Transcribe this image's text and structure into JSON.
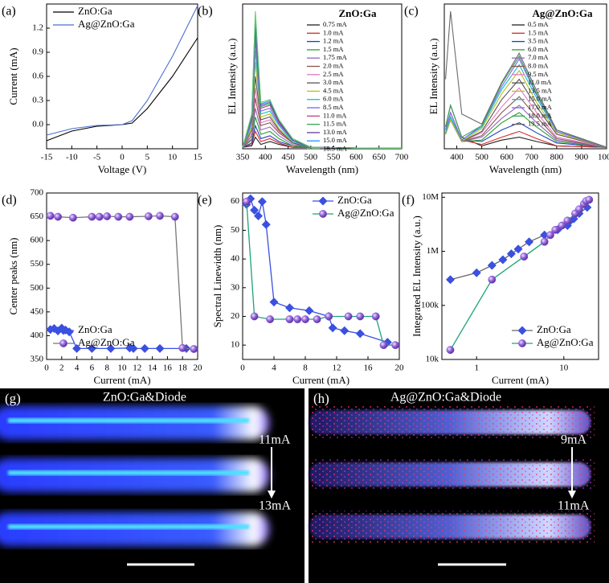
{
  "chart_data": [
    {
      "type": "line",
      "label": "(a)",
      "xlabel": "Voltage (V)",
      "ylabel": "Current (mA)",
      "x": [
        -15,
        -10,
        -5,
        0,
        2,
        5,
        10,
        15
      ],
      "series": [
        {
          "name": "ZnO:Ga",
          "color": "#000000",
          "values": [
            -0.2,
            -0.08,
            -0.02,
            0,
            0.02,
            0.2,
            0.6,
            1.08
          ]
        },
        {
          "name": "Ag@ZnO:Ga",
          "color": "#4a6fd0",
          "values": [
            -0.13,
            -0.05,
            -0.01,
            0,
            0.05,
            0.3,
            0.85,
            1.48
          ]
        }
      ],
      "xlim": [
        -15,
        15
      ],
      "xticks": [
        -15,
        -10,
        -5,
        0,
        5,
        10,
        15
      ],
      "ylim": [
        -0.3,
        1.5
      ],
      "yticks": [
        {
          "value": 0,
          "label": "0.0"
        },
        0.3,
        0.6,
        0.9,
        1.2
      ],
      "legend": "upper left"
    },
    {
      "type": "line",
      "label": "(b)",
      "title": "ZnO:Ga",
      "xlabel": "Wavelength (nm)",
      "ylabel": "EL Intensity (a.u.)",
      "x": [
        350,
        370,
        378,
        390,
        410,
        430,
        460,
        500,
        600,
        700
      ],
      "series": [
        {
          "name": "0.75 mA",
          "color": "#222222",
          "values": [
            1,
            2,
            8,
            3,
            5,
            3,
            1,
            1,
            0.5,
            0.3
          ]
        },
        {
          "name": "1.0 mA",
          "color": "#d62728",
          "values": [
            1,
            3,
            12,
            5,
            7,
            4,
            1,
            1,
            0.5,
            0.3
          ]
        },
        {
          "name": "1.2 mA",
          "color": "#1f3fbf",
          "values": [
            1,
            4,
            16,
            7,
            9,
            5,
            2,
            1,
            0.5,
            0.3
          ]
        },
        {
          "name": "1.5 mA",
          "color": "#2ca02c",
          "values": [
            1,
            6,
            22,
            10,
            12,
            7,
            2,
            1,
            0.5,
            0.3
          ]
        },
        {
          "name": "1.75 mA",
          "color": "#9467bd",
          "values": [
            1,
            7,
            28,
            13,
            15,
            9,
            3,
            1,
            0.5,
            0.3
          ]
        },
        {
          "name": "2.0 mA",
          "color": "#8c564b",
          "values": [
            1,
            9,
            35,
            16,
            18,
            11,
            4,
            1,
            0.5,
            0.3
          ]
        },
        {
          "name": "2.5 mA",
          "color": "#e377c2",
          "values": [
            1,
            11,
            42,
            18,
            20,
            12,
            4,
            1,
            0.5,
            0.3
          ]
        },
        {
          "name": "3.0 mA",
          "color": "#555555",
          "values": [
            1,
            13,
            50,
            20,
            22,
            13,
            4,
            1,
            0.5,
            0.3
          ]
        },
        {
          "name": "4.5 mA",
          "color": "#bcbd22",
          "values": [
            1,
            15,
            60,
            22,
            24,
            14,
            5,
            1,
            0.5,
            0.3
          ]
        },
        {
          "name": "6.0 mA",
          "color": "#17becf",
          "values": [
            1,
            17,
            68,
            24,
            26,
            16,
            5,
            1,
            0.5,
            0.3
          ]
        },
        {
          "name": "8.5 mA",
          "color": "#7b68ee",
          "values": [
            1,
            19,
            75,
            26,
            28,
            17,
            6,
            1,
            0.5,
            0.3
          ]
        },
        {
          "name": "11.0 mA",
          "color": "#c04080",
          "values": [
            1,
            20,
            80,
            28,
            30,
            18,
            6,
            1,
            0.5,
            0.3
          ]
        },
        {
          "name": "11.5 mA",
          "color": "#3aa655",
          "values": [
            1,
            21,
            84,
            29,
            31,
            19,
            6,
            1,
            0.5,
            0.3
          ]
        },
        {
          "name": "13.0 mA",
          "color": "#6a3d9a",
          "values": [
            1,
            22,
            88,
            30,
            32,
            19,
            6,
            1,
            0.5,
            0.3
          ]
        },
        {
          "name": "15.0 mA",
          "color": "#1e90ff",
          "values": [
            1,
            23,
            92,
            31,
            33,
            20,
            7,
            1,
            0.5,
            0.3
          ]
        },
        {
          "name": "18.5 mA",
          "color": "#66cc66",
          "values": [
            1,
            24,
            95,
            32,
            34,
            20,
            7,
            1,
            0.5,
            0.3
          ]
        }
      ],
      "xlim": [
        350,
        700
      ],
      "xticks": [
        350,
        400,
        450,
        500,
        550,
        600,
        650,
        700
      ],
      "ylim": [
        0,
        100
      ],
      "legend": "upper right"
    },
    {
      "type": "line",
      "label": "(c)",
      "title": "Ag@ZnO:Ga",
      "xlabel": "Wavelength (nm)",
      "ylabel": "EL Intensity (a.u.)",
      "x": [
        355,
        375,
        420,
        500,
        580,
        650,
        720,
        800,
        1000
      ],
      "series": [
        {
          "name": "0.5 mA",
          "color": "#222222",
          "values": [
            15,
            30,
            8,
            2,
            6,
            8,
            5,
            2,
            1
          ]
        },
        {
          "name": "1.5 mA",
          "color": "#d62728",
          "values": [
            13,
            25,
            6,
            3,
            8,
            12,
            7,
            2,
            1
          ]
        },
        {
          "name": "3.5 mA",
          "color": "#1f3fbf",
          "values": [
            11,
            22,
            6,
            5,
            13,
            18,
            11,
            4,
            1
          ]
        },
        {
          "name": "6.0 mA",
          "color": "#2ca02c",
          "values": [
            10,
            20,
            5,
            6,
            18,
            25,
            15,
            5,
            1
          ]
        },
        {
          "name": "7.0 mA",
          "color": "#9467bd",
          "values": [
            10,
            20,
            5,
            8,
            21,
            30,
            18,
            6,
            1
          ]
        },
        {
          "name": "8.0 mA",
          "color": "#8c564b",
          "values": [
            10,
            20,
            5,
            9,
            25,
            36,
            22,
            7,
            1
          ]
        },
        {
          "name": "9.5 mA",
          "color": "#e377c2",
          "values": [
            10,
            20,
            5,
            11,
            29,
            42,
            25,
            8,
            1
          ]
        },
        {
          "name": "11.0 mA",
          "color": "#555555",
          "values": [
            10,
            20,
            5,
            12,
            34,
            48,
            29,
            10,
            1
          ]
        },
        {
          "name": "13.5 mA",
          "color": "#bcbd22",
          "values": [
            10,
            20,
            5,
            14,
            38,
            54,
            32,
            11,
            1
          ]
        },
        {
          "name": "15.0 mA",
          "color": "#17becf",
          "values": [
            11,
            22,
            6,
            15,
            41,
            58,
            35,
            12,
            1
          ]
        },
        {
          "name": "17.0 mA",
          "color": "#7b68ee",
          "values": [
            13,
            25,
            6,
            16,
            43,
            62,
            37,
            12,
            1
          ]
        },
        {
          "name": "18.0 mA",
          "color": "#3aa655",
          "values": [
            15,
            30,
            8,
            16,
            45,
            64,
            38,
            13,
            1
          ]
        },
        {
          "name": "19.5 mA",
          "color": "#6a6a6a",
          "values": [
            48,
            95,
            24,
            17,
            46,
            66,
            40,
            13,
            1
          ]
        }
      ],
      "xlim": [
        350,
        1000
      ],
      "xticks": [
        400,
        500,
        600,
        700,
        800,
        900,
        1000
      ],
      "ylim": [
        0,
        100
      ],
      "legend": "upper right"
    },
    {
      "type": "line",
      "label": "(d)",
      "xlabel": "Current (mA)",
      "ylabel": "Center peaks (nm)",
      "series": [
        {
          "name": "ZnO:Ga",
          "color": "#3a50e0",
          "line_color": "#3a50e0",
          "marker": "diamond",
          "x": [
            0.5,
            1,
            1.5,
            2,
            2.5,
            3,
            4,
            6,
            8.5,
            11,
            11.5,
            13,
            15,
            18.5
          ],
          "values": [
            413,
            415,
            410,
            416,
            412,
            408,
            373,
            373,
            373,
            374,
            373,
            373,
            373,
            373
          ]
        },
        {
          "name": "Ag@ZnO:Ga",
          "color": "#8a55d8",
          "line_color": "#777777",
          "marker": "circle",
          "x": [
            0.5,
            1.5,
            3.5,
            6,
            7,
            8,
            9.5,
            11,
            13.5,
            15,
            17,
            18,
            19.5
          ],
          "values": [
            652,
            650,
            648,
            650,
            650,
            651,
            650,
            650,
            651,
            652,
            650,
            374,
            372
          ]
        }
      ],
      "xlim": [
        0,
        20
      ],
      "xticks": [
        0,
        2,
        4,
        6,
        8,
        10,
        12,
        14,
        16,
        18,
        20
      ],
      "ylim": [
        350,
        700
      ],
      "yticks": [
        350,
        400,
        450,
        500,
        550,
        600,
        650,
        700
      ],
      "legend": "lower left"
    },
    {
      "type": "line",
      "label": "(e)",
      "xlabel": "Current (mA)",
      "ylabel": "Spectral Linewidth (nm)",
      "series": [
        {
          "name": "ZnO:Ga",
          "color": "#3a50e0",
          "line_color": "#3a50e0",
          "marker": "diamond",
          "x": [
            0.5,
            1,
            1.5,
            2,
            2.5,
            3,
            4,
            6,
            8.5,
            11,
            11.5,
            13,
            15,
            18.5
          ],
          "values": [
            59,
            61,
            57,
            55,
            60,
            52,
            25,
            23,
            22,
            20,
            16,
            15,
            14,
            11
          ]
        },
        {
          "name": "Ag@ZnO:Ga",
          "color": "#8a55d8",
          "line_color": "#1aa37a",
          "marker": "circle",
          "x": [
            0.5,
            1.5,
            3.5,
            6,
            7,
            8,
            9.5,
            11,
            13.5,
            15,
            17,
            18,
            19.5
          ],
          "values": [
            60,
            20,
            19,
            19,
            19,
            19,
            19,
            20,
            20,
            20,
            20,
            10,
            10
          ]
        }
      ],
      "xlim": [
        0,
        20
      ],
      "xticks": [
        0,
        4,
        8,
        12,
        16,
        20
      ],
      "ylim": [
        5,
        63
      ],
      "yticks": [
        10,
        20,
        30,
        40,
        50,
        60
      ],
      "legend": "upper right"
    },
    {
      "type": "line",
      "label": "(f)",
      "xlabel": "Current (mA)",
      "ylabel": "Integrated EL Intensity (a.u.)",
      "xlog": true,
      "ylog": true,
      "series": [
        {
          "name": "ZnO:Ga",
          "color": "#3a50e0",
          "line_color": "#666666",
          "marker": "diamond",
          "x": [
            0.5,
            1,
            1.5,
            2,
            2.5,
            3,
            4,
            6,
            8.5,
            11,
            11.5,
            13,
            15,
            18.5
          ],
          "values": [
            300000,
            400000,
            550000,
            700000,
            900000,
            1100000,
            1500000,
            2000000,
            2500000,
            3000000,
            3500000,
            4000000,
            5000000,
            6500000
          ]
        },
        {
          "name": "Ag@ZnO:Ga",
          "color": "#8a55d8",
          "line_color": "#1aa37a",
          "marker": "circle",
          "x": [
            0.5,
            1.5,
            3.5,
            6,
            7,
            8,
            9.5,
            11,
            13.5,
            15,
            17,
            18,
            19.5
          ],
          "values": [
            15000,
            300000,
            800000,
            1500000,
            2000000,
            2500000,
            3000000,
            3700000,
            5000000,
            6000000,
            7500000,
            8500000,
            9000000
          ]
        }
      ],
      "xlim": [
        0.4,
        25
      ],
      "xticks": [
        1,
        10
      ],
      "ylim": [
        10000,
        12000000
      ],
      "yticks": [
        {
          "value": 10000,
          "label": "10k"
        },
        {
          "value": 100000,
          "label": "100k"
        },
        {
          "value": 1000000,
          "label": "1M"
        },
        {
          "value": 10000000,
          "label": "10M"
        }
      ],
      "legend": "lower right"
    }
  ],
  "photos": [
    {
      "label": "(g)",
      "title": "ZnO:Ga&Diode",
      "start": "11mA",
      "end": "13mA"
    },
    {
      "label": "(h)",
      "title": "Ag@ZnO:Ga&Diode",
      "start": "9mA",
      "end": "11mA"
    }
  ]
}
